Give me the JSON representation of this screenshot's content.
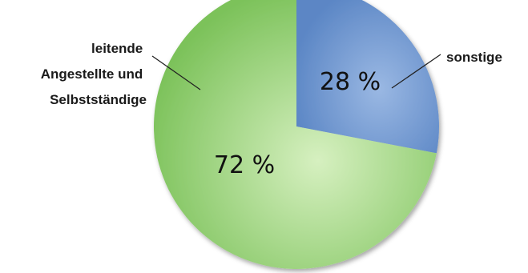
{
  "chart_data": {
    "type": "pie",
    "title": "",
    "slices": [
      {
        "label_lines": [
          "sonstige"
        ],
        "value": 28,
        "value_label": "28 %",
        "color": "#5b86c5",
        "color_light": "#9ab8e3"
      },
      {
        "label_lines": [
          "leitende",
          "Angestellte und",
          "Selbstständige"
        ],
        "value": 72,
        "value_label": "72 %",
        "color": "#7cc25a",
        "color_light": "#d6f0c0"
      }
    ],
    "start_angle_deg": 0,
    "direction": "clockwise",
    "legend": "none",
    "label_placement": "outside with leader lines"
  }
}
